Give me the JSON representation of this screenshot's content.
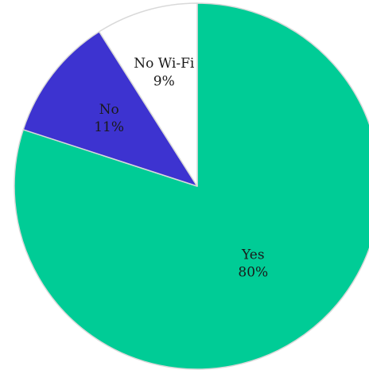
{
  "chart_data": {
    "type": "pie",
    "title": "",
    "slices": [
      {
        "name": "Yes",
        "value": 80,
        "value_label": "80%",
        "color": "#00CC96"
      },
      {
        "name": "No",
        "value": 11,
        "value_label": "11%",
        "color": "#3D33D0"
      },
      {
        "name": "No Wi-Fi",
        "value": 9,
        "value_label": "9%",
        "color": "#FFFFFF"
      }
    ],
    "start_angle_deg": 0,
    "direction": "clockwise",
    "legend": "none",
    "labels_inside": true
  }
}
